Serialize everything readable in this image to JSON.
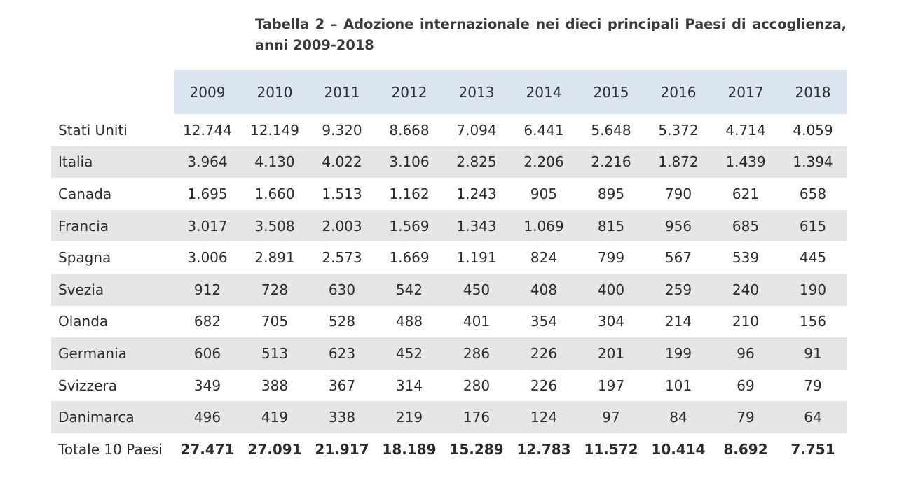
{
  "title": "Tabella 2 – Adozione internazionale nei dieci principali Paesi di accoglienza, anni 2009-2018",
  "years": [
    "2009",
    "2010",
    "2011",
    "2012",
    "2013",
    "2014",
    "2015",
    "2016",
    "2017",
    "2018"
  ],
  "rows": [
    {
      "name": "Stati Uniti",
      "values": [
        "12.744",
        "12.149",
        "9.320",
        "8.668",
        "7.094",
        "6.441",
        "5.648",
        "5.372",
        "4.714",
        "4.059"
      ]
    },
    {
      "name": "Italia",
      "values": [
        "3.964",
        "4.130",
        "4.022",
        "3.106",
        "2.825",
        "2.206",
        "2.216",
        "1.872",
        "1.439",
        "1.394"
      ]
    },
    {
      "name": "Canada",
      "values": [
        "1.695",
        "1.660",
        "1.513",
        "1.162",
        "1.243",
        "905",
        "895",
        "790",
        "621",
        "658"
      ]
    },
    {
      "name": "Francia",
      "values": [
        "3.017",
        "3.508",
        "2.003",
        "1.569",
        "1.343",
        "1.069",
        "815",
        "956",
        "685",
        "615"
      ]
    },
    {
      "name": "Spagna",
      "values": [
        "3.006",
        "2.891",
        "2.573",
        "1.669",
        "1.191",
        "824",
        "799",
        "567",
        "539",
        "445"
      ]
    },
    {
      "name": "Svezia",
      "values": [
        "912",
        "728",
        "630",
        "542",
        "450",
        "408",
        "400",
        "259",
        "240",
        "190"
      ]
    },
    {
      "name": "Olanda",
      "values": [
        "682",
        "705",
        "528",
        "488",
        "401",
        "354",
        "304",
        "214",
        "210",
        "156"
      ]
    },
    {
      "name": "Germania",
      "values": [
        "606",
        "513",
        "623",
        "452",
        "286",
        "226",
        "201",
        "199",
        "96",
        "91"
      ]
    },
    {
      "name": "Svizzera",
      "values": [
        "349",
        "388",
        "367",
        "314",
        "280",
        "226",
        "197",
        "101",
        "69",
        "79"
      ]
    },
    {
      "name": "Danimarca",
      "values": [
        "496",
        "419",
        "338",
        "219",
        "176",
        "124",
        "97",
        "84",
        "79",
        "64"
      ]
    },
    {
      "name": "Totale 10 Paesi",
      "values": [
        "27.471",
        "27.091",
        "21.917",
        "18.189",
        "15.289",
        "12.783",
        "11.572",
        "10.414",
        "8.692",
        "7.751"
      ]
    }
  ]
}
